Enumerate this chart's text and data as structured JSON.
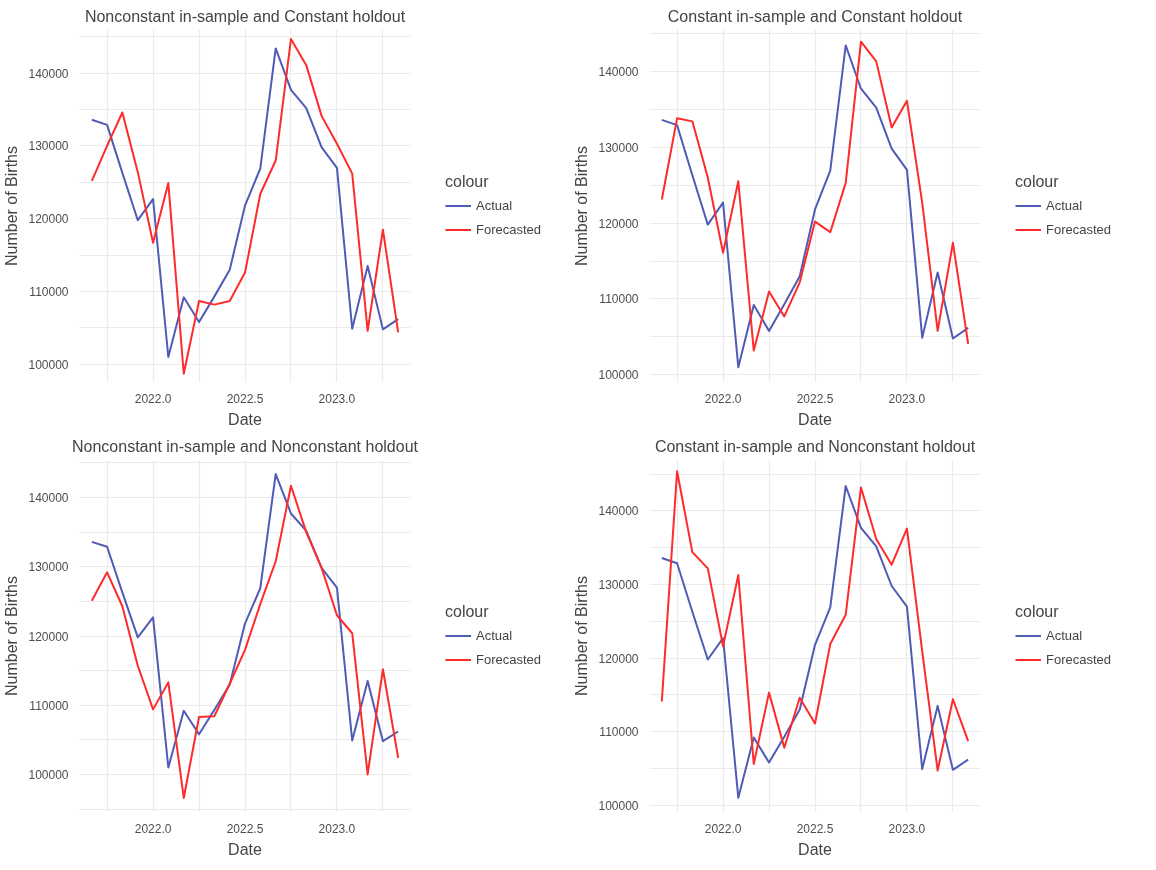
{
  "chart_data": [
    {
      "type": "line",
      "title": "Nonconstant in-sample and Constant holdout",
      "xlabel": "Date",
      "ylabel": "Number of Births",
      "legend_title": "colour",
      "legend": "right",
      "grid": true,
      "x": [
        2021.667,
        2021.75,
        2021.833,
        2021.917,
        2022.0,
        2022.083,
        2022.167,
        2022.25,
        2022.333,
        2022.417,
        2022.5,
        2022.583,
        2022.667,
        2022.75,
        2022.833,
        2022.917,
        2023.0,
        2023.083,
        2023.167,
        2023.25,
        2023.333
      ],
      "xlim": [
        2021.6,
        2023.4
      ],
      "ylim": [
        97500,
        146000
      ],
      "xticks": [
        {
          "value": 2021.75,
          "label": null
        },
        {
          "value": 2022.0,
          "label": "2022.0"
        },
        {
          "value": 2022.25,
          "label": null
        },
        {
          "value": 2022.5,
          "label": "2022.5"
        },
        {
          "value": 2022.75,
          "label": null
        },
        {
          "value": 2023.0,
          "label": "2023.0"
        },
        {
          "value": 2023.25,
          "label": null
        }
      ],
      "yticks": [
        100000,
        {
          "value": 105000,
          "label": null
        },
        110000,
        {
          "value": 115000,
          "label": null
        },
        120000,
        {
          "value": 125000,
          "label": null
        },
        130000,
        {
          "value": 135000,
          "label": null
        },
        140000,
        {
          "value": 145000,
          "label": null
        }
      ],
      "series": [
        {
          "name": "Actual",
          "color": "#4f5bb5",
          "values": [
            133600,
            132900,
            126300,
            119800,
            122700,
            101000,
            109200,
            105800,
            109300,
            113000,
            121800,
            126900,
            143400,
            137700,
            135200,
            129800,
            127000,
            104900,
            113500,
            104800,
            106200
          ]
        },
        {
          "name": "Forecasted",
          "color": "#ff2a2a",
          "values": [
            125200,
            130000,
            134600,
            126400,
            116700,
            124900,
            98700,
            108700,
            108200,
            108700,
            112600,
            123400,
            128000,
            144700,
            141100,
            134100,
            130300,
            126200,
            104600,
            118500,
            104400
          ]
        }
      ]
    },
    {
      "type": "line",
      "title": "Constant in-sample and Constant holdout",
      "xlabel": "Date",
      "ylabel": "Number of Births",
      "legend_title": "colour",
      "legend": "right",
      "grid": true,
      "x": [
        2021.667,
        2021.75,
        2021.833,
        2021.917,
        2022.0,
        2022.083,
        2022.167,
        2022.25,
        2022.333,
        2022.417,
        2022.5,
        2022.583,
        2022.667,
        2022.75,
        2022.833,
        2022.917,
        2023.0,
        2023.083,
        2023.167,
        2023.25,
        2023.333
      ],
      "xlim": [
        2021.6,
        2023.4
      ],
      "ylim": [
        99000,
        145500
      ],
      "xticks": [
        {
          "value": 2021.75,
          "label": null
        },
        {
          "value": 2022.0,
          "label": "2022.0"
        },
        {
          "value": 2022.25,
          "label": null
        },
        {
          "value": 2022.5,
          "label": "2022.5"
        },
        {
          "value": 2022.75,
          "label": null
        },
        {
          "value": 2023.0,
          "label": "2023.0"
        },
        {
          "value": 2023.25,
          "label": null
        }
      ],
      "yticks": [
        100000,
        {
          "value": 105000,
          "label": null
        },
        110000,
        {
          "value": 115000,
          "label": null
        },
        120000,
        {
          "value": 125000,
          "label": null
        },
        130000,
        {
          "value": 135000,
          "label": null
        },
        140000,
        {
          "value": 145000,
          "label": null
        }
      ],
      "series": [
        {
          "name": "Actual",
          "color": "#4f5bb5",
          "values": [
            133600,
            132900,
            126300,
            119800,
            122700,
            101000,
            109200,
            105800,
            109300,
            113000,
            121800,
            126900,
            143400,
            137700,
            135200,
            129800,
            127000,
            104900,
            113500,
            104800,
            106200
          ]
        },
        {
          "name": "Forecasted",
          "color": "#ff2a2a",
          "values": [
            123100,
            133800,
            133400,
            126000,
            116100,
            125500,
            103200,
            111000,
            107700,
            112200,
            120200,
            118800,
            125300,
            143900,
            141300,
            132600,
            136100,
            122700,
            105800,
            117400,
            104100
          ]
        }
      ]
    },
    {
      "type": "line",
      "title": "Nonconstant in-sample and Nonconstant holdout",
      "xlabel": "Date",
      "ylabel": "Number of Births",
      "legend_title": "colour",
      "legend": "right",
      "grid": true,
      "x": [
        2021.667,
        2021.75,
        2021.833,
        2021.917,
        2022.0,
        2022.083,
        2022.167,
        2022.25,
        2022.333,
        2022.417,
        2022.5,
        2022.583,
        2022.667,
        2022.75,
        2022.833,
        2022.917,
        2023.0,
        2023.083,
        2023.167,
        2023.25,
        2023.333
      ],
      "xlim": [
        2021.6,
        2023.4
      ],
      "ylim": [
        94500,
        145500
      ],
      "xticks": [
        {
          "value": 2021.75,
          "label": null
        },
        {
          "value": 2022.0,
          "label": "2022.0"
        },
        {
          "value": 2022.25,
          "label": null
        },
        {
          "value": 2022.5,
          "label": "2022.5"
        },
        {
          "value": 2022.75,
          "label": null
        },
        {
          "value": 2023.0,
          "label": "2023.0"
        },
        {
          "value": 2023.25,
          "label": null
        }
      ],
      "yticks": [
        {
          "value": 95000,
          "label": null
        },
        100000,
        {
          "value": 105000,
          "label": null
        },
        110000,
        {
          "value": 115000,
          "label": null
        },
        120000,
        {
          "value": 125000,
          "label": null
        },
        130000,
        {
          "value": 135000,
          "label": null
        },
        140000,
        {
          "value": 145000,
          "label": null
        }
      ],
      "series": [
        {
          "name": "Actual",
          "color": "#4f5bb5",
          "values": [
            133600,
            132900,
            126300,
            119800,
            122700,
            101000,
            109200,
            105800,
            109300,
            113000,
            121800,
            126900,
            143400,
            137700,
            135200,
            129800,
            127000,
            104900,
            113500,
            104800,
            106200
          ]
        },
        {
          "name": "Forecasted",
          "color": "#ff2a2a",
          "values": [
            125100,
            129200,
            124300,
            115700,
            109400,
            113300,
            96600,
            108300,
            108400,
            113100,
            118000,
            124600,
            130800,
            141700,
            135000,
            129800,
            123000,
            120400,
            100000,
            115200,
            102400
          ]
        }
      ]
    },
    {
      "type": "line",
      "title": "Constant in-sample and Nonconstant holdout",
      "xlabel": "Date",
      "ylabel": "Number of Births",
      "legend_title": "colour",
      "legend": "right",
      "grid": true,
      "x": [
        2021.667,
        2021.75,
        2021.833,
        2021.917,
        2022.0,
        2022.083,
        2022.167,
        2022.25,
        2022.333,
        2022.417,
        2022.5,
        2022.583,
        2022.667,
        2022.75,
        2022.833,
        2022.917,
        2023.0,
        2023.083,
        2023.167,
        2023.25,
        2023.333
      ],
      "xlim": [
        2021.6,
        2023.4
      ],
      "ylim": [
        99000,
        147000
      ],
      "xticks": [
        {
          "value": 2021.75,
          "label": null
        },
        {
          "value": 2022.0,
          "label": "2022.0"
        },
        {
          "value": 2022.25,
          "label": null
        },
        {
          "value": 2022.5,
          "label": "2022.5"
        },
        {
          "value": 2022.75,
          "label": null
        },
        {
          "value": 2023.0,
          "label": "2023.0"
        },
        {
          "value": 2023.25,
          "label": null
        }
      ],
      "yticks": [
        100000,
        {
          "value": 105000,
          "label": null
        },
        110000,
        {
          "value": 115000,
          "label": null
        },
        120000,
        {
          "value": 125000,
          "label": null
        },
        130000,
        {
          "value": 135000,
          "label": null
        },
        140000,
        {
          "value": 145000,
          "label": null
        }
      ],
      "series": [
        {
          "name": "Actual",
          "color": "#4f5bb5",
          "values": [
            133600,
            132900,
            126300,
            119800,
            122700,
            101000,
            109200,
            105800,
            109300,
            113000,
            121800,
            126900,
            143400,
            137700,
            135200,
            129800,
            127000,
            104900,
            113500,
            104800,
            106200
          ]
        },
        {
          "name": "Forecasted",
          "color": "#ff2a2a",
          "values": [
            114100,
            145400,
            134400,
            132200,
            121600,
            131300,
            105600,
            115300,
            107800,
            114600,
            111100,
            121900,
            125900,
            143200,
            136200,
            132700,
            137600,
            120900,
            104700,
            114400,
            108700
          ]
        }
      ]
    }
  ]
}
